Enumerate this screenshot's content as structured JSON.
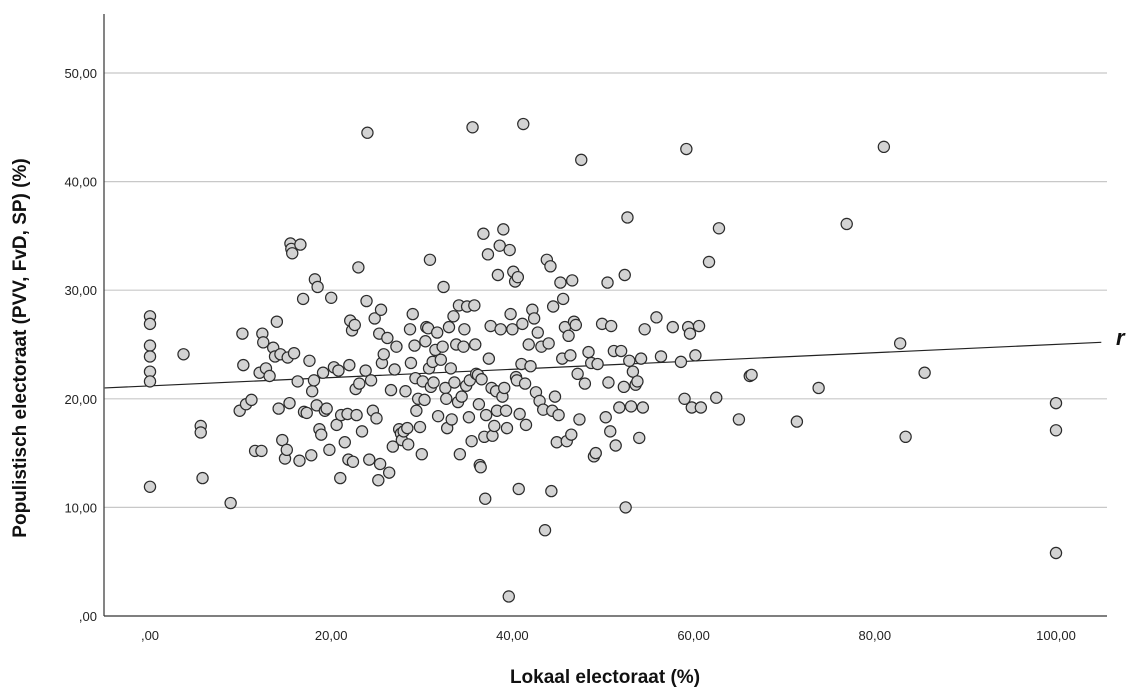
{
  "chart_data": {
    "type": "scatter",
    "title": "",
    "xlabel": "Lokaal electoraat (%)",
    "ylabel": "Populistisch electoraat (PVV, FvD, SP) (%)",
    "xlim": [
      -5,
      105
    ],
    "ylim": [
      0,
      55
    ],
    "x_ticks": [
      0,
      20,
      40,
      60,
      80,
      100
    ],
    "x_tick_labels": [
      ",00",
      "20,00",
      "40,00",
      "60,00",
      "80,00",
      "100,00"
    ],
    "y_ticks": [
      0,
      10,
      20,
      30,
      40,
      50
    ],
    "y_tick_labels": [
      ",00",
      "10,00",
      "20,00",
      "30,00",
      "40,00",
      "50,00"
    ],
    "grid": "horizontal",
    "fit_line": {
      "label": "r",
      "start": [
        -5,
        21.0
      ],
      "end": [
        105,
        25.2
      ]
    },
    "points": [
      [
        0,
        27.6
      ],
      [
        0,
        26.9
      ],
      [
        0,
        24.9
      ],
      [
        0,
        23.9
      ],
      [
        0,
        22.5
      ],
      [
        0,
        21.6
      ],
      [
        0,
        11.9
      ],
      [
        3.7,
        24.1
      ],
      [
        5.6,
        17.5
      ],
      [
        5.6,
        16.9
      ],
      [
        5.8,
        12.7
      ],
      [
        8.9,
        10.4
      ],
      [
        9.9,
        18.9
      ],
      [
        10.2,
        26.0
      ],
      [
        10.3,
        23.1
      ],
      [
        10.6,
        19.5
      ],
      [
        11.2,
        19.9
      ],
      [
        11.6,
        15.2
      ],
      [
        12.1,
        22.4
      ],
      [
        12.3,
        15.2
      ],
      [
        12.4,
        26.0
      ],
      [
        12.5,
        25.2
      ],
      [
        12.8,
        22.8
      ],
      [
        13.2,
        22.1
      ],
      [
        13.6,
        24.7
      ],
      [
        13.8,
        23.9
      ],
      [
        14.0,
        27.1
      ],
      [
        14.2,
        19.1
      ],
      [
        14.4,
        24.1
      ],
      [
        14.6,
        16.2
      ],
      [
        14.9,
        14.5
      ],
      [
        15.1,
        15.3
      ],
      [
        15.2,
        23.8
      ],
      [
        15.4,
        19.6
      ],
      [
        15.5,
        34.3
      ],
      [
        15.6,
        33.8
      ],
      [
        15.7,
        33.4
      ],
      [
        15.9,
        24.2
      ],
      [
        16.3,
        21.6
      ],
      [
        16.5,
        14.3
      ],
      [
        16.6,
        34.2
      ],
      [
        16.9,
        29.2
      ],
      [
        17.0,
        18.8
      ],
      [
        17.3,
        18.7
      ],
      [
        17.6,
        23.5
      ],
      [
        17.8,
        14.8
      ],
      [
        17.9,
        20.7
      ],
      [
        18.1,
        21.7
      ],
      [
        18.2,
        31.0
      ],
      [
        18.4,
        19.4
      ],
      [
        18.5,
        30.3
      ],
      [
        18.7,
        17.2
      ],
      [
        18.9,
        16.7
      ],
      [
        19.1,
        22.4
      ],
      [
        19.3,
        18.9
      ],
      [
        19.5,
        19.1
      ],
      [
        19.8,
        15.3
      ],
      [
        20.0,
        29.3
      ],
      [
        20.3,
        22.9
      ],
      [
        20.6,
        17.6
      ],
      [
        20.8,
        22.6
      ],
      [
        21.0,
        12.7
      ],
      [
        21.1,
        18.5
      ],
      [
        21.5,
        16.0
      ],
      [
        21.8,
        18.6
      ],
      [
        21.9,
        14.4
      ],
      [
        22.0,
        23.1
      ],
      [
        22.1,
        27.2
      ],
      [
        22.3,
        26.3
      ],
      [
        22.4,
        14.2
      ],
      [
        22.6,
        26.8
      ],
      [
        22.7,
        20.9
      ],
      [
        22.8,
        18.5
      ],
      [
        23.0,
        32.1
      ],
      [
        23.1,
        21.4
      ],
      [
        23.4,
        17.0
      ],
      [
        23.8,
        22.6
      ],
      [
        23.9,
        29.0
      ],
      [
        24.0,
        44.5
      ],
      [
        24.2,
        14.4
      ],
      [
        24.4,
        21.7
      ],
      [
        24.6,
        18.9
      ],
      [
        24.8,
        27.4
      ],
      [
        25.0,
        18.2
      ],
      [
        25.2,
        12.5
      ],
      [
        25.3,
        26.0
      ],
      [
        25.4,
        14.0
      ],
      [
        25.5,
        28.2
      ],
      [
        25.6,
        23.3
      ],
      [
        25.8,
        24.1
      ],
      [
        26.2,
        25.6
      ],
      [
        26.4,
        13.2
      ],
      [
        26.6,
        20.8
      ],
      [
        26.8,
        15.6
      ],
      [
        27.0,
        22.7
      ],
      [
        27.2,
        24.8
      ],
      [
        27.5,
        17.2
      ],
      [
        27.7,
        16.8
      ],
      [
        27.8,
        16.2
      ],
      [
        28.0,
        17.0
      ],
      [
        28.2,
        20.7
      ],
      [
        28.4,
        17.3
      ],
      [
        28.5,
        15.8
      ],
      [
        28.7,
        26.4
      ],
      [
        28.8,
        23.3
      ],
      [
        29.0,
        27.8
      ],
      [
        29.2,
        24.9
      ],
      [
        29.3,
        21.9
      ],
      [
        29.4,
        18.9
      ],
      [
        29.6,
        20.0
      ],
      [
        29.8,
        17.4
      ],
      [
        30.0,
        14.9
      ],
      [
        30.1,
        21.6
      ],
      [
        30.3,
        19.9
      ],
      [
        30.4,
        25.3
      ],
      [
        30.5,
        26.6
      ],
      [
        30.7,
        26.5
      ],
      [
        30.8,
        22.8
      ],
      [
        30.9,
        32.8
      ],
      [
        31.0,
        21.1
      ],
      [
        31.2,
        23.4
      ],
      [
        31.3,
        21.5
      ],
      [
        31.5,
        24.5
      ],
      [
        31.7,
        26.1
      ],
      [
        31.8,
        18.4
      ],
      [
        32.1,
        23.6
      ],
      [
        32.3,
        24.8
      ],
      [
        32.4,
        30.3
      ],
      [
        32.6,
        21.0
      ],
      [
        32.7,
        20.0
      ],
      [
        32.8,
        17.3
      ],
      [
        33.0,
        26.6
      ],
      [
        33.2,
        22.8
      ],
      [
        33.3,
        18.1
      ],
      [
        33.5,
        27.6
      ],
      [
        33.6,
        21.5
      ],
      [
        33.8,
        25.0
      ],
      [
        34.0,
        19.7
      ],
      [
        34.1,
        28.6
      ],
      [
        34.2,
        14.9
      ],
      [
        34.4,
        20.2
      ],
      [
        34.6,
        24.8
      ],
      [
        34.7,
        26.4
      ],
      [
        34.9,
        21.2
      ],
      [
        35.0,
        28.5
      ],
      [
        35.2,
        18.3
      ],
      [
        35.3,
        21.7
      ],
      [
        35.5,
        16.1
      ],
      [
        35.6,
        45.0
      ],
      [
        35.8,
        28.6
      ],
      [
        35.9,
        25.0
      ],
      [
        36.0,
        22.3
      ],
      [
        36.2,
        22.2
      ],
      [
        36.3,
        19.5
      ],
      [
        36.4,
        13.9
      ],
      [
        36.5,
        13.7
      ],
      [
        36.6,
        21.8
      ],
      [
        36.8,
        35.2
      ],
      [
        36.9,
        16.5
      ],
      [
        37.0,
        10.8
      ],
      [
        37.1,
        18.5
      ],
      [
        37.3,
        33.3
      ],
      [
        37.4,
        23.7
      ],
      [
        37.6,
        26.7
      ],
      [
        37.7,
        21.0
      ],
      [
        37.8,
        16.6
      ],
      [
        38.0,
        17.5
      ],
      [
        38.2,
        20.7
      ],
      [
        38.3,
        18.9
      ],
      [
        38.4,
        31.4
      ],
      [
        38.6,
        34.1
      ],
      [
        38.7,
        26.4
      ],
      [
        38.9,
        20.2
      ],
      [
        39.0,
        35.6
      ],
      [
        39.1,
        21.0
      ],
      [
        39.3,
        18.9
      ],
      [
        39.4,
        17.3
      ],
      [
        39.6,
        1.8
      ],
      [
        39.7,
        33.7
      ],
      [
        39.8,
        27.8
      ],
      [
        40.0,
        26.4
      ],
      [
        40.1,
        31.7
      ],
      [
        40.3,
        30.8
      ],
      [
        40.4,
        22.0
      ],
      [
        40.5,
        21.7
      ],
      [
        40.6,
        31.2
      ],
      [
        40.7,
        11.7
      ],
      [
        40.8,
        18.6
      ],
      [
        41.0,
        23.2
      ],
      [
        41.1,
        26.9
      ],
      [
        41.2,
        45.3
      ],
      [
        41.4,
        21.4
      ],
      [
        41.5,
        17.6
      ],
      [
        41.8,
        25.0
      ],
      [
        42.0,
        23.0
      ],
      [
        42.2,
        28.2
      ],
      [
        42.4,
        27.4
      ],
      [
        42.6,
        20.6
      ],
      [
        42.8,
        26.1
      ],
      [
        43.0,
        19.8
      ],
      [
        43.2,
        24.8
      ],
      [
        43.4,
        19.0
      ],
      [
        43.6,
        7.9
      ],
      [
        43.8,
        32.8
      ],
      [
        44.0,
        25.1
      ],
      [
        44.2,
        32.2
      ],
      [
        44.3,
        11.5
      ],
      [
        44.4,
        18.9
      ],
      [
        44.5,
        28.5
      ],
      [
        44.7,
        20.2
      ],
      [
        44.9,
        16.0
      ],
      [
        45.1,
        18.5
      ],
      [
        45.3,
        30.7
      ],
      [
        45.5,
        23.7
      ],
      [
        45.6,
        29.2
      ],
      [
        45.8,
        26.6
      ],
      [
        46.0,
        16.1
      ],
      [
        46.2,
        25.8
      ],
      [
        46.4,
        24.0
      ],
      [
        46.5,
        16.7
      ],
      [
        46.6,
        30.9
      ],
      [
        46.8,
        27.1
      ],
      [
        47.0,
        26.8
      ],
      [
        47.2,
        22.3
      ],
      [
        47.4,
        18.1
      ],
      [
        47.6,
        42.0
      ],
      [
        48.0,
        21.4
      ],
      [
        48.4,
        24.3
      ],
      [
        48.7,
        23.3
      ],
      [
        49.0,
        14.7
      ],
      [
        49.2,
        15.0
      ],
      [
        49.4,
        23.2
      ],
      [
        49.9,
        26.9
      ],
      [
        50.3,
        18.3
      ],
      [
        50.5,
        30.7
      ],
      [
        50.6,
        21.5
      ],
      [
        50.8,
        17.0
      ],
      [
        50.9,
        26.7
      ],
      [
        51.2,
        24.4
      ],
      [
        51.4,
        15.7
      ],
      [
        51.8,
        19.2
      ],
      [
        52.0,
        24.4
      ],
      [
        52.3,
        21.1
      ],
      [
        52.4,
        31.4
      ],
      [
        52.5,
        10.0
      ],
      [
        52.7,
        36.7
      ],
      [
        52.9,
        23.5
      ],
      [
        53.1,
        19.3
      ],
      [
        53.3,
        22.5
      ],
      [
        53.6,
        21.3
      ],
      [
        53.8,
        21.6
      ],
      [
        54.0,
        16.4
      ],
      [
        54.2,
        23.7
      ],
      [
        54.4,
        19.2
      ],
      [
        54.6,
        26.4
      ],
      [
        55.9,
        27.5
      ],
      [
        56.4,
        23.9
      ],
      [
        57.7,
        26.6
      ],
      [
        58.6,
        23.4
      ],
      [
        59.0,
        20.0
      ],
      [
        59.2,
        43.0
      ],
      [
        59.4,
        26.6
      ],
      [
        59.6,
        26.0
      ],
      [
        59.8,
        19.2
      ],
      [
        60.2,
        24.0
      ],
      [
        60.6,
        26.7
      ],
      [
        60.8,
        19.2
      ],
      [
        61.7,
        32.6
      ],
      [
        62.5,
        20.1
      ],
      [
        62.8,
        35.7
      ],
      [
        65.0,
        18.1
      ],
      [
        66.2,
        22.1
      ],
      [
        66.4,
        22.2
      ],
      [
        71.4,
        17.9
      ],
      [
        73.8,
        21.0
      ],
      [
        76.9,
        36.1
      ],
      [
        81.0,
        43.2
      ],
      [
        82.8,
        25.1
      ],
      [
        83.4,
        16.5
      ],
      [
        85.5,
        22.4
      ],
      [
        100,
        19.6
      ],
      [
        100,
        17.1
      ],
      [
        100,
        5.8
      ]
    ]
  }
}
